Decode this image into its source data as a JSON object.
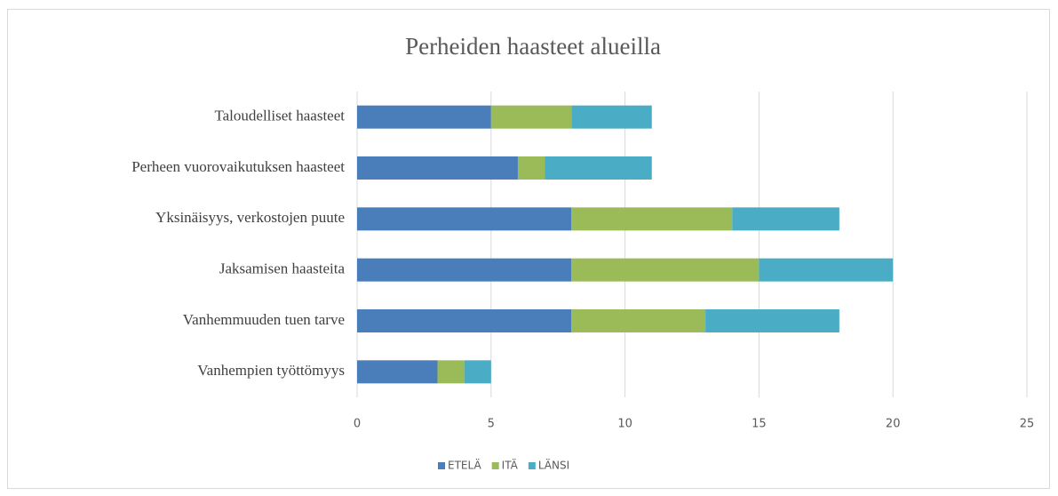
{
  "chart_data": {
    "type": "stacked_barh",
    "title": "Perheiden haasteet alueilla",
    "categories": [
      "Taloudelliset haasteet",
      "Perheen vuorovaikutuksen haasteet",
      "Yksinäisyys, verkostojen puute",
      "Jaksamisen haasteita",
      "Vanhemmuuden tuen tarve",
      "Vanhempien työttömyys"
    ],
    "series": [
      {
        "name": "ETELÄ",
        "color": "#4a7ebb",
        "values": [
          5,
          6,
          8,
          8,
          8,
          3
        ]
      },
      {
        "name": "ITÄ",
        "color": "#9bbb59",
        "values": [
          3,
          1,
          6,
          7,
          5,
          1
        ]
      },
      {
        "name": "LÄNSI",
        "color": "#4bacc6",
        "values": [
          3,
          4,
          4,
          5,
          5,
          1
        ]
      }
    ],
    "xlim": [
      0,
      25
    ],
    "xticks": [
      0,
      5,
      10,
      15,
      20,
      25
    ],
    "grid": true,
    "legend": "bottom"
  }
}
